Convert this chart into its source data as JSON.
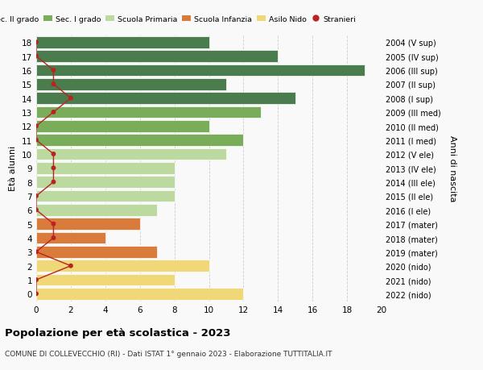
{
  "ages": [
    18,
    17,
    16,
    15,
    14,
    13,
    12,
    11,
    10,
    9,
    8,
    7,
    6,
    5,
    4,
    3,
    2,
    1,
    0
  ],
  "right_labels": [
    "2004 (V sup)",
    "2005 (IV sup)",
    "2006 (III sup)",
    "2007 (II sup)",
    "2008 (I sup)",
    "2009 (III med)",
    "2010 (II med)",
    "2011 (I med)",
    "2012 (V ele)",
    "2013 (IV ele)",
    "2014 (III ele)",
    "2015 (II ele)",
    "2016 (I ele)",
    "2017 (mater)",
    "2018 (mater)",
    "2019 (mater)",
    "2020 (nido)",
    "2021 (nido)",
    "2022 (nido)"
  ],
  "bar_values": [
    10,
    14,
    19,
    11,
    15,
    13,
    10,
    12,
    11,
    8,
    8,
    8,
    7,
    6,
    4,
    7,
    10,
    8,
    12
  ],
  "bar_colors": [
    "#4a7c4e",
    "#4a7c4e",
    "#4a7c4e",
    "#4a7c4e",
    "#4a7c4e",
    "#7aad5a",
    "#7aad5a",
    "#7aad5a",
    "#bcd9a0",
    "#bcd9a0",
    "#bcd9a0",
    "#bcd9a0",
    "#bcd9a0",
    "#d97b3a",
    "#d97b3a",
    "#d97b3a",
    "#f0d878",
    "#f0d878",
    "#f0d878"
  ],
  "stranieri_x": [
    0,
    0,
    1,
    1,
    2,
    1,
    0,
    0,
    1,
    1,
    1,
    0,
    0,
    1,
    1,
    0,
    2,
    0,
    0
  ],
  "legend_labels": [
    "Sec. II grado",
    "Sec. I grado",
    "Scuola Primaria",
    "Scuola Infanzia",
    "Asilo Nido",
    "Stranieri"
  ],
  "legend_colors": [
    "#4a7c4e",
    "#7aad5a",
    "#bcd9a0",
    "#d97b3a",
    "#f0d878",
    "#bb2222"
  ],
  "ylabel_left": "Età alunni",
  "ylabel_right": "Anni di nascita",
  "title": "Popolazione per età scolastica - 2023",
  "subtitle": "COMUNE DI COLLEVECCHIO (RI) - Dati ISTAT 1° gennaio 2023 - Elaborazione TUTTITALIA.IT",
  "xlim": [
    0,
    20
  ],
  "background_color": "#f9f9f9",
  "grid_color": "#cccccc"
}
